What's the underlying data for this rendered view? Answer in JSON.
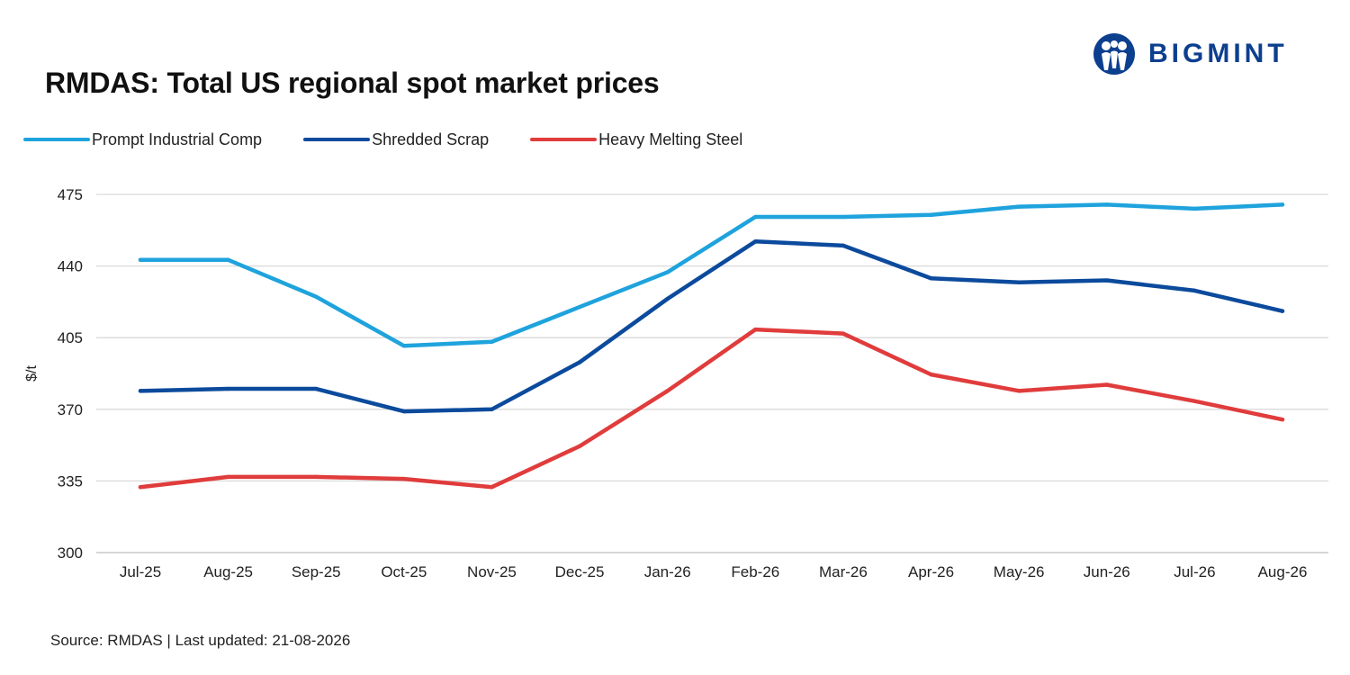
{
  "title": "RMDAS: Total US regional spot market prices",
  "logo": {
    "text": "BIGMINT",
    "color": "#0d3f8f"
  },
  "source": "Source: RMDAS | Last updated: 21-08-2026",
  "chart_data": {
    "type": "line",
    "title": "RMDAS: Total US regional spot market prices",
    "xlabel": "",
    "ylabel": "$/t",
    "ylim": [
      300,
      475
    ],
    "yticks": [
      475,
      440,
      405,
      370,
      335,
      300
    ],
    "grid": true,
    "legend_position": "top-left",
    "categories": [
      "Jul-25",
      "Aug-25",
      "Sep-25",
      "Oct-25",
      "Nov-25",
      "Dec-25",
      "Jan-26",
      "Feb-26",
      "Mar-26",
      "Apr-26",
      "May-26",
      "Jun-26",
      "Jul-26",
      "Aug-26"
    ],
    "series": [
      {
        "name": "Prompt Industrial Comp",
        "color": "#1fa3dd",
        "values": [
          443,
          443,
          425,
          401,
          403,
          420,
          437,
          464,
          464,
          465,
          469,
          470,
          468,
          470
        ]
      },
      {
        "name": "Shredded Scrap",
        "color": "#0b4a9c",
        "values": [
          379,
          380,
          380,
          369,
          370,
          393,
          424,
          452,
          450,
          434,
          432,
          433,
          428,
          418
        ]
      },
      {
        "name": "Heavy Melting Steel",
        "color": "#e03c3c",
        "values": [
          332,
          337,
          337,
          336,
          332,
          352,
          379,
          409,
          407,
          387,
          379,
          382,
          374,
          365
        ]
      }
    ]
  }
}
